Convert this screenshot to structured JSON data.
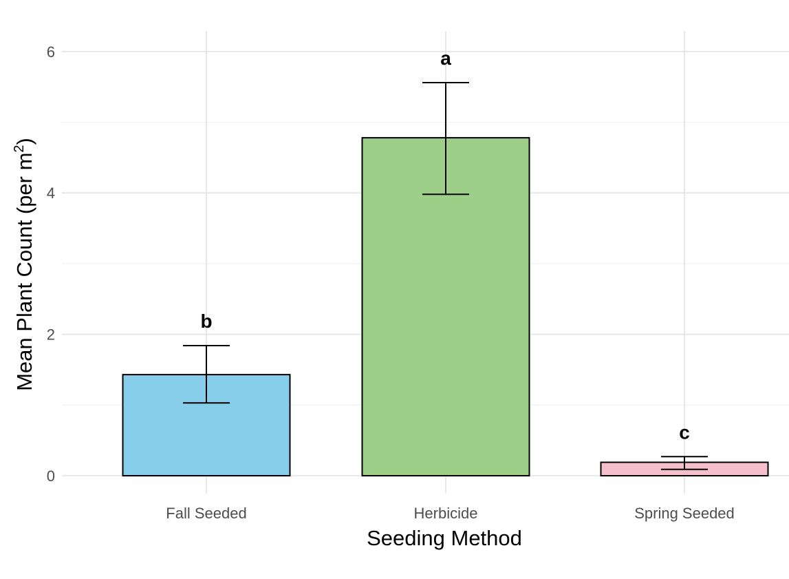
{
  "chart_data": {
    "type": "bar",
    "title": "",
    "xlabel": "Seeding Method",
    "ylabel_main": "Mean Plant Count (per m",
    "ylabel_sup": "2",
    "ylabel_end": ")",
    "categories": [
      "Fall Seeded",
      "Herbicide",
      "Spring Seeded"
    ],
    "values": [
      1.43,
      4.78,
      0.19
    ],
    "error_low": [
      1.03,
      3.98,
      0.09
    ],
    "error_high": [
      1.84,
      5.56,
      0.27
    ],
    "significance_letters": [
      "b",
      "a",
      "c"
    ],
    "colors": [
      "#87ceeb",
      "#9dcf89",
      "#f5bfcb"
    ],
    "ylim": [
      -0.25,
      6.15
    ],
    "yticks": [
      0,
      2,
      4,
      6
    ],
    "ytick_labels": [
      "0",
      "2",
      "4",
      "6"
    ],
    "grid": true,
    "legend": "none"
  }
}
